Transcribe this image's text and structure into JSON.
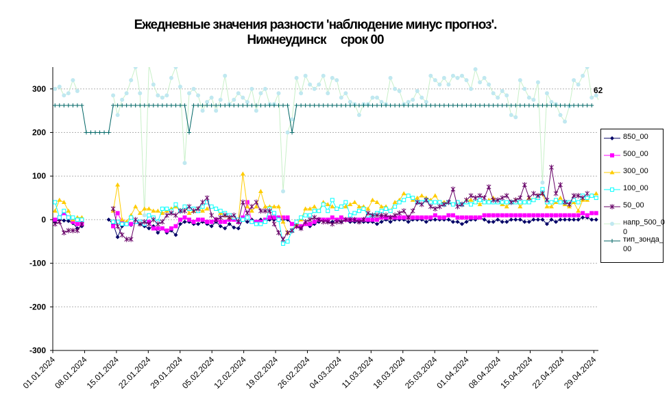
{
  "title": {
    "line1": "Ежедневные значения разности 'наблюдение минус прогноз'.",
    "line2": "Нижнеудинск     срок 00"
  },
  "chart_data": {
    "type": "line",
    "ylim": [
      -300,
      350
    ],
    "yticks": [
      -300,
      -200,
      -100,
      0,
      100,
      200,
      300
    ],
    "xlim": [
      "2024-01-01",
      "2024-04-30"
    ],
    "xtick_labels": [
      "01.01.2024",
      "08.01.2024",
      "15.01.2024",
      "22.01.2024",
      "29.01.2024",
      "05.02.2024",
      "12.02.2024",
      "19.02.2024",
      "26.02.2024",
      "04.03.2024",
      "11.03.2024",
      "18.03.2024",
      "25.03.2024",
      "01.04.2024",
      "08.04.2024",
      "15.04.2024",
      "22.04.2024",
      "29.04.2024"
    ],
    "grid": "horizontal-dashed",
    "legend_position": "right",
    "end_annotation": "62",
    "series": [
      {
        "name": "850_00",
        "color": "#000066",
        "marker": "diamond",
        "values": [
          -5,
          0,
          -2,
          -3,
          -8,
          -20,
          -15,
          null,
          null,
          null,
          null,
          null,
          0,
          -10,
          -40,
          -15,
          -10,
          -12,
          -5,
          -10,
          -15,
          -20,
          -15,
          -30,
          -20,
          -30,
          -25,
          -35,
          -10,
          -5,
          -5,
          -10,
          -10,
          -5,
          -10,
          -15,
          -5,
          -15,
          -20,
          -10,
          -18,
          -20,
          0,
          -5,
          0,
          -5,
          0,
          -5,
          0,
          0,
          0,
          0,
          0,
          -10,
          -15,
          -20,
          -10,
          -15,
          -10,
          -5,
          0,
          -5,
          -5,
          0,
          -5,
          0,
          -5,
          -5,
          -5,
          -5,
          -5,
          -5,
          -10,
          -5,
          0,
          -5,
          0,
          0,
          0,
          -5,
          0,
          0,
          0,
          -5,
          0,
          0,
          0,
          0,
          0,
          -5,
          -5,
          -10,
          -5,
          0,
          0,
          5,
          0,
          -5,
          -5,
          0,
          -5,
          -5,
          0,
          0,
          0,
          -5,
          -5,
          0,
          0,
          0,
          -10,
          0,
          -5,
          0,
          0,
          0,
          0,
          0,
          5,
          5,
          0,
          0
        ]
      },
      {
        "name": "500_00",
        "color": "#ff00ff",
        "marker": "square",
        "values": [
          0,
          5,
          15,
          5,
          -5,
          -10,
          -10,
          null,
          null,
          null,
          null,
          null,
          null,
          -15,
          15,
          -5,
          -10,
          -10,
          -5,
          -5,
          -10,
          -5,
          -20,
          -20,
          -20,
          -25,
          -20,
          -15,
          0,
          5,
          0,
          -5,
          0,
          0,
          -5,
          -5,
          0,
          -5,
          -5,
          0,
          0,
          -5,
          5,
          40,
          -5,
          -5,
          -5,
          0,
          5,
          5,
          5,
          5,
          5,
          -10,
          -15,
          -15,
          -10,
          -10,
          -5,
          0,
          0,
          0,
          5,
          0,
          5,
          0,
          0,
          0,
          0,
          0,
          0,
          0,
          0,
          5,
          5,
          5,
          5,
          5,
          5,
          5,
          5,
          5,
          5,
          5,
          5,
          10,
          5,
          5,
          10,
          10,
          5,
          5,
          5,
          5,
          5,
          5,
          10,
          10,
          10,
          10,
          10,
          10,
          10,
          10,
          10,
          10,
          10,
          10,
          10,
          10,
          10,
          10,
          10,
          10,
          10,
          10,
          10,
          10,
          15,
          10,
          15,
          15
        ]
      },
      {
        "name": "300_00",
        "color": "#ffcc00",
        "marker": "triangle",
        "values": [
          20,
          45,
          40,
          20,
          0,
          5,
          5,
          null,
          null,
          null,
          null,
          null,
          null,
          20,
          80,
          0,
          -5,
          10,
          30,
          15,
          25,
          25,
          20,
          20,
          15,
          20,
          25,
          30,
          20,
          30,
          15,
          20,
          25,
          20,
          25,
          30,
          25,
          15,
          10,
          5,
          5,
          0,
          105,
          30,
          20,
          30,
          65,
          30,
          30,
          30,
          30,
          -5,
          -30,
          -25,
          -10,
          0,
          25,
          25,
          30,
          20,
          40,
          35,
          30,
          25,
          30,
          30,
          35,
          40,
          30,
          30,
          25,
          45,
          40,
          30,
          30,
          20,
          40,
          45,
          60,
          55,
          45,
          50,
          55,
          50,
          45,
          55,
          40,
          40,
          40,
          35,
          40,
          35,
          45,
          45,
          40,
          35,
          40,
          45,
          50,
          40,
          35,
          30,
          40,
          45,
          30,
          40,
          50,
          45,
          55,
          60,
          30,
          30,
          40,
          50,
          35,
          30,
          40,
          20,
          45,
          45,
          55,
          60
        ]
      },
      {
        "name": "100_00",
        "color": "#00ffff",
        "marker": "square-open",
        "values": [
          40,
          5,
          20,
          5,
          5,
          0,
          0,
          null,
          null,
          null,
          null,
          null,
          null,
          -5,
          -5,
          -10,
          -10,
          5,
          -5,
          -5,
          -10,
          10,
          5,
          -5,
          25,
          25,
          20,
          35,
          20,
          30,
          25,
          25,
          20,
          30,
          40,
          30,
          25,
          20,
          15,
          10,
          5,
          0,
          0,
          5,
          -5,
          -10,
          -10,
          -5,
          25,
          15,
          0,
          -55,
          -50,
          -25,
          -5,
          5,
          10,
          10,
          20,
          20,
          35,
          20,
          45,
          25,
          30,
          40,
          10,
          15,
          20,
          25,
          10,
          10,
          15,
          20,
          25,
          20,
          30,
          40,
          45,
          55,
          50,
          40,
          40,
          45,
          40,
          40,
          40,
          35,
          40,
          35,
          40,
          35,
          40,
          35,
          40,
          45,
          40,
          40,
          40,
          40,
          40,
          40,
          40,
          40,
          40,
          40,
          40,
          45,
          50,
          70,
          40,
          40,
          45,
          40,
          40,
          40,
          45,
          40,
          55,
          50,
          55,
          50
        ]
      },
      {
        "name": "50_00",
        "color": "#660066",
        "marker": "star",
        "values": [
          -10,
          -5,
          -30,
          -25,
          -25,
          -25,
          -10,
          null,
          null,
          null,
          null,
          null,
          null,
          25,
          -15,
          -35,
          -45,
          -45,
          0,
          -10,
          -5,
          -10,
          0,
          -10,
          -5,
          10,
          15,
          10,
          20,
          20,
          30,
          20,
          25,
          40,
          50,
          10,
          0,
          5,
          10,
          5,
          10,
          -5,
          40,
          15,
          30,
          40,
          20,
          20,
          20,
          -10,
          -30,
          -45,
          -30,
          -25,
          -15,
          -20,
          -5,
          0,
          5,
          0,
          -5,
          -5,
          -10,
          -5,
          -5,
          0,
          0,
          0,
          -5,
          0,
          15,
          10,
          10,
          10,
          10,
          5,
          10,
          15,
          20,
          5,
          20,
          40,
          35,
          45,
          30,
          25,
          30,
          35,
          40,
          70,
          30,
          35,
          45,
          55,
          50,
          55,
          50,
          75,
          45,
          45,
          50,
          55,
          40,
          45,
          50,
          80,
          50,
          60,
          55,
          60,
          45,
          120,
          60,
          80,
          40,
          35,
          55,
          55,
          50,
          60
        ]
      },
      {
        "name": "напр_500_00",
        "color": "#c0e8f0",
        "linecolor": "#c8f0c8",
        "marker": "circle",
        "values": [
          300,
          305,
          285,
          290,
          320,
          295,
          null,
          null,
          null,
          null,
          null,
          null,
          null,
          285,
          240,
          275,
          290,
          320,
          350,
          290,
          10,
          355,
          310,
          285,
          280,
          285,
          325,
          350,
          305,
          130,
          290,
          300,
          285,
          250,
          270,
          280,
          250,
          275,
          330,
          265,
          275,
          290,
          280,
          270,
          300,
          250,
          290,
          300,
          265,
          265,
          290,
          65,
          200,
          230,
          325,
          290,
          330,
          310,
          300,
          310,
          330,
          290,
          325,
          320,
          280,
          290,
          270,
          265,
          240,
          265,
          265,
          280,
          280,
          270,
          265,
          325,
          300,
          295,
          265,
          270,
          275,
          295,
          280,
          270,
          330,
          320,
          310,
          325,
          310,
          330,
          325,
          330,
          320,
          300,
          345,
          315,
          325,
          310,
          290,
          280,
          295,
          285,
          240,
          235,
          320,
          300,
          280,
          275,
          315,
          85,
          290,
          270,
          265,
          240,
          225,
          260,
          320,
          310,
          330,
          350,
          280,
          285,
          265,
          250
        ]
      },
      {
        "name": "тип_зонда_00",
        "color": "#006666",
        "marker": "plus",
        "values": [
          262,
          262,
          262,
          262,
          262,
          262,
          262,
          200,
          200,
          200,
          200,
          200,
          200,
          262,
          262,
          262,
          262,
          262,
          262,
          262,
          262,
          262,
          262,
          262,
          262,
          262,
          262,
          262,
          262,
          262,
          200,
          262,
          262,
          262,
          262,
          262,
          262,
          262,
          262,
          262,
          262,
          262,
          262,
          262,
          262,
          262,
          262,
          262,
          262,
          262,
          262,
          262,
          262,
          200,
          262,
          262,
          262,
          262,
          262,
          262,
          262,
          262,
          262,
          262,
          262,
          262,
          262,
          262,
          262,
          262,
          262,
          262,
          262,
          262,
          262,
          262,
          262,
          262,
          262,
          262,
          262,
          262,
          262,
          262,
          262,
          262,
          262,
          262,
          262,
          262,
          262,
          262,
          262,
          262,
          262,
          262,
          262,
          262,
          262,
          262,
          262,
          262,
          262,
          262,
          262,
          262,
          262,
          262,
          262,
          262,
          262,
          262,
          262,
          262,
          262,
          262,
          262,
          262,
          262,
          262,
          262
        ]
      }
    ]
  },
  "legend": {
    "items": [
      {
        "label": "850_00"
      },
      {
        "label": "500_00"
      },
      {
        "label": "300_00"
      },
      {
        "label": "100_00"
      },
      {
        "label": "50_00"
      },
      {
        "label": "напр_500_00"
      },
      {
        "label": "тип_зонда_00"
      }
    ]
  }
}
